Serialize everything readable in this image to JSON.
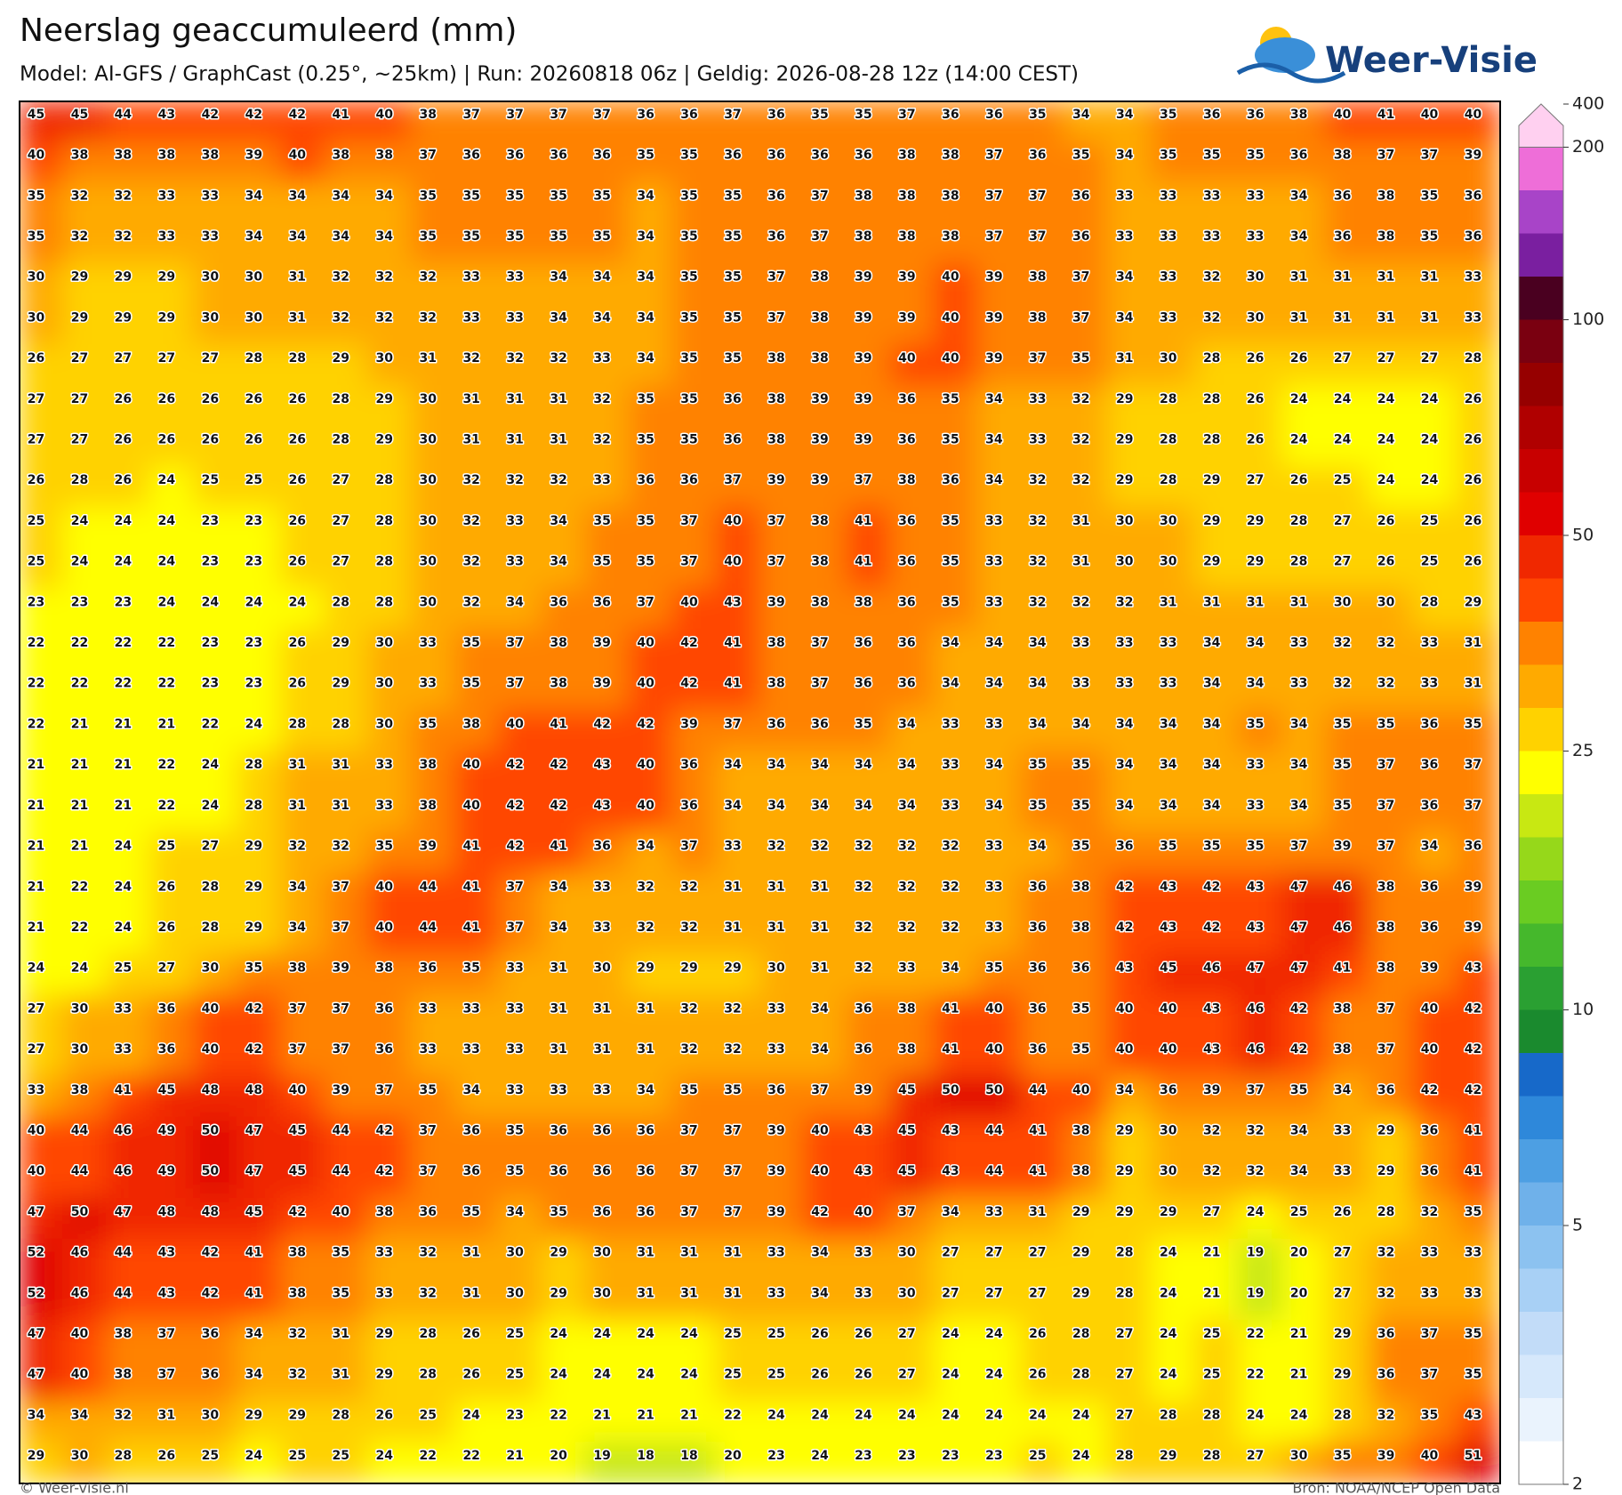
{
  "header": {
    "title": "Neerslag geaccumuleerd (mm)",
    "subtitle": "Model: AI-GFS / GraphCast (0.25°, ~25km)  |  Run: 20260818 06z  |  Geldig: 2026-08-28 12z (14:00 CEST)",
    "logo": "Weer-Visie"
  },
  "colorbar": {
    "ticks": [
      2,
      5,
      10,
      25,
      50,
      100,
      200,
      400
    ]
  },
  "grid": {
    "rows": [
      [
        45,
        45,
        44,
        43,
        42,
        42,
        42,
        41,
        40,
        38,
        37,
        37,
        37,
        37,
        36,
        36,
        37,
        36,
        35,
        35,
        37,
        36,
        36,
        35,
        34,
        34,
        35,
        36,
        36,
        38,
        40,
        41,
        40,
        40
      ],
      [
        40,
        38,
        38,
        38,
        38,
        39,
        40,
        38,
        38,
        37,
        36,
        36,
        36,
        36,
        35,
        35,
        36,
        36,
        36,
        36,
        38,
        38,
        37,
        36,
        35,
        34,
        35,
        35,
        35,
        36,
        38,
        37,
        37,
        39
      ],
      [
        35,
        32,
        32,
        33,
        33,
        34,
        34,
        34,
        34,
        35,
        35,
        35,
        35,
        35,
        34,
        35,
        35,
        36,
        37,
        38,
        38,
        38,
        37,
        37,
        36,
        33,
        33,
        33,
        33,
        34,
        36,
        38,
        35,
        36
      ],
      [
        35,
        32,
        32,
        33,
        33,
        34,
        34,
        34,
        34,
        35,
        35,
        35,
        35,
        35,
        34,
        35,
        35,
        36,
        37,
        38,
        38,
        38,
        37,
        37,
        36,
        33,
        33,
        33,
        33,
        34,
        36,
        38,
        35,
        36
      ],
      [
        30,
        29,
        29,
        29,
        30,
        30,
        31,
        32,
        32,
        32,
        33,
        33,
        34,
        34,
        34,
        35,
        35,
        37,
        38,
        39,
        39,
        40,
        39,
        38,
        37,
        34,
        33,
        32,
        30,
        31,
        31,
        31,
        31,
        33
      ],
      [
        30,
        29,
        29,
        29,
        30,
        30,
        31,
        32,
        32,
        32,
        33,
        33,
        34,
        34,
        34,
        35,
        35,
        37,
        38,
        39,
        39,
        40,
        39,
        38,
        37,
        34,
        33,
        32,
        30,
        31,
        31,
        31,
        31,
        33
      ],
      [
        26,
        27,
        27,
        27,
        27,
        28,
        28,
        29,
        30,
        31,
        32,
        32,
        32,
        33,
        34,
        35,
        35,
        38,
        38,
        39,
        40,
        40,
        39,
        37,
        35,
        31,
        30,
        28,
        26,
        26,
        27,
        27,
        27,
        28
      ],
      [
        27,
        27,
        26,
        26,
        26,
        26,
        26,
        28,
        29,
        30,
        31,
        31,
        31,
        32,
        35,
        35,
        36,
        38,
        39,
        39,
        36,
        35,
        34,
        33,
        32,
        29,
        28,
        28,
        26,
        24,
        24,
        24,
        24,
        26
      ],
      [
        27,
        27,
        26,
        26,
        26,
        26,
        26,
        28,
        29,
        30,
        31,
        31,
        31,
        32,
        35,
        35,
        36,
        38,
        39,
        39,
        36,
        35,
        34,
        33,
        32,
        29,
        28,
        28,
        26,
        24,
        24,
        24,
        24,
        26
      ],
      [
        26,
        28,
        26,
        24,
        25,
        25,
        26,
        27,
        28,
        30,
        32,
        32,
        32,
        33,
        36,
        36,
        37,
        39,
        39,
        37,
        38,
        36,
        34,
        32,
        32,
        29,
        28,
        29,
        27,
        26,
        25,
        24,
        24,
        26
      ],
      [
        25,
        24,
        24,
        24,
        23,
        23,
        26,
        27,
        28,
        30,
        32,
        33,
        34,
        35,
        35,
        37,
        40,
        37,
        38,
        41,
        36,
        35,
        33,
        32,
        31,
        30,
        30,
        29,
        29,
        28,
        27,
        26,
        25,
        26
      ],
      [
        25,
        24,
        24,
        24,
        23,
        23,
        26,
        27,
        28,
        30,
        32,
        33,
        34,
        35,
        35,
        37,
        40,
        37,
        38,
        41,
        36,
        35,
        33,
        32,
        31,
        30,
        30,
        29,
        29,
        28,
        27,
        26,
        25,
        26
      ],
      [
        23,
        23,
        23,
        24,
        24,
        24,
        24,
        28,
        28,
        30,
        32,
        34,
        36,
        36,
        37,
        40,
        43,
        39,
        38,
        38,
        36,
        35,
        33,
        32,
        32,
        32,
        31,
        31,
        31,
        31,
        30,
        30,
        28,
        29
      ],
      [
        22,
        22,
        22,
        22,
        23,
        23,
        26,
        29,
        30,
        33,
        35,
        37,
        38,
        39,
        40,
        42,
        41,
        38,
        37,
        36,
        36,
        34,
        34,
        34,
        33,
        33,
        33,
        34,
        34,
        33,
        32,
        32,
        33,
        31
      ],
      [
        22,
        22,
        22,
        22,
        23,
        23,
        26,
        29,
        30,
        33,
        35,
        37,
        38,
        39,
        40,
        42,
        41,
        38,
        37,
        36,
        36,
        34,
        34,
        34,
        33,
        33,
        33,
        34,
        34,
        33,
        32,
        32,
        33,
        31
      ],
      [
        22,
        21,
        21,
        21,
        22,
        24,
        28,
        28,
        30,
        35,
        38,
        40,
        41,
        42,
        42,
        39,
        37,
        36,
        36,
        35,
        34,
        33,
        33,
        34,
        34,
        34,
        34,
        34,
        35,
        34,
        35,
        35,
        36,
        35
      ],
      [
        21,
        21,
        21,
        22,
        24,
        28,
        31,
        31,
        33,
        38,
        40,
        42,
        42,
        43,
        40,
        36,
        34,
        34,
        34,
        34,
        34,
        33,
        34,
        35,
        35,
        34,
        34,
        34,
        33,
        34,
        35,
        37,
        36,
        37
      ],
      [
        21,
        21,
        21,
        22,
        24,
        28,
        31,
        31,
        33,
        38,
        40,
        42,
        42,
        43,
        40,
        36,
        34,
        34,
        34,
        34,
        34,
        33,
        34,
        35,
        35,
        34,
        34,
        34,
        33,
        34,
        35,
        37,
        36,
        37
      ],
      [
        21,
        21,
        24,
        25,
        27,
        29,
        32,
        32,
        35,
        39,
        41,
        42,
        41,
        36,
        34,
        37,
        33,
        32,
        32,
        32,
        32,
        32,
        33,
        34,
        35,
        36,
        35,
        35,
        35,
        37,
        39,
        37,
        34,
        36
      ],
      [
        21,
        22,
        24,
        26,
        28,
        29,
        34,
        37,
        40,
        44,
        41,
        37,
        34,
        33,
        32,
        32,
        31,
        31,
        31,
        32,
        32,
        32,
        33,
        36,
        38,
        42,
        43,
        42,
        43,
        47,
        46,
        38,
        36,
        39
      ],
      [
        21,
        22,
        24,
        26,
        28,
        29,
        34,
        37,
        40,
        44,
        41,
        37,
        34,
        33,
        32,
        32,
        31,
        31,
        31,
        32,
        32,
        32,
        33,
        36,
        38,
        42,
        43,
        42,
        43,
        47,
        46,
        38,
        36,
        39
      ],
      [
        24,
        24,
        25,
        27,
        30,
        35,
        38,
        39,
        38,
        36,
        35,
        33,
        31,
        30,
        29,
        29,
        29,
        30,
        31,
        32,
        33,
        34,
        35,
        36,
        36,
        43,
        45,
        46,
        47,
        47,
        41,
        38,
        39,
        43
      ],
      [
        27,
        30,
        33,
        36,
        40,
        42,
        37,
        37,
        36,
        33,
        33,
        33,
        31,
        31,
        31,
        32,
        32,
        33,
        34,
        36,
        38,
        41,
        40,
        36,
        35,
        40,
        40,
        43,
        46,
        42,
        38,
        37,
        40,
        42
      ],
      [
        27,
        30,
        33,
        36,
        40,
        42,
        37,
        37,
        36,
        33,
        33,
        33,
        31,
        31,
        31,
        32,
        32,
        33,
        34,
        36,
        38,
        41,
        40,
        36,
        35,
        40,
        40,
        43,
        46,
        42,
        38,
        37,
        40,
        42
      ],
      [
        33,
        38,
        41,
        45,
        48,
        48,
        40,
        39,
        37,
        35,
        34,
        33,
        33,
        33,
        34,
        35,
        35,
        36,
        37,
        39,
        45,
        50,
        50,
        44,
        40,
        34,
        36,
        39,
        37,
        35,
        34,
        36,
        42,
        42
      ],
      [
        40,
        44,
        46,
        49,
        50,
        47,
        45,
        44,
        42,
        37,
        36,
        35,
        36,
        36,
        36,
        37,
        37,
        39,
        40,
        43,
        45,
        43,
        44,
        41,
        38,
        29,
        30,
        32,
        32,
        34,
        33,
        29,
        36,
        41
      ],
      [
        40,
        44,
        46,
        49,
        50,
        47,
        45,
        44,
        42,
        37,
        36,
        35,
        36,
        36,
        36,
        37,
        37,
        39,
        40,
        43,
        45,
        43,
        44,
        41,
        38,
        29,
        30,
        32,
        32,
        34,
        33,
        29,
        36,
        41
      ],
      [
        47,
        50,
        47,
        48,
        48,
        45,
        42,
        40,
        38,
        36,
        35,
        34,
        35,
        36,
        36,
        37,
        37,
        39,
        42,
        40,
        37,
        34,
        33,
        31,
        29,
        29,
        29,
        27,
        24,
        25,
        26,
        28,
        32,
        35
      ],
      [
        52,
        46,
        44,
        43,
        42,
        41,
        38,
        35,
        33,
        32,
        31,
        30,
        29,
        30,
        31,
        31,
        31,
        33,
        34,
        33,
        30,
        27,
        27,
        27,
        29,
        28,
        24,
        21,
        19,
        20,
        27,
        32,
        33,
        33
      ],
      [
        52,
        46,
        44,
        43,
        42,
        41,
        38,
        35,
        33,
        32,
        31,
        30,
        29,
        30,
        31,
        31,
        31,
        33,
        34,
        33,
        30,
        27,
        27,
        27,
        29,
        28,
        24,
        21,
        19,
        20,
        27,
        32,
        33,
        33
      ],
      [
        47,
        40,
        38,
        37,
        36,
        34,
        32,
        31,
        29,
        28,
        26,
        25,
        24,
        24,
        24,
        24,
        25,
        25,
        26,
        26,
        27,
        24,
        24,
        26,
        28,
        27,
        24,
        25,
        22,
        21,
        29,
        36,
        37,
        35
      ],
      [
        47,
        40,
        38,
        37,
        36,
        34,
        32,
        31,
        29,
        28,
        26,
        25,
        24,
        24,
        24,
        24,
        25,
        25,
        26,
        26,
        27,
        24,
        24,
        26,
        28,
        27,
        24,
        25,
        22,
        21,
        29,
        36,
        37,
        35
      ],
      [
        34,
        34,
        32,
        31,
        30,
        29,
        29,
        28,
        26,
        25,
        24,
        23,
        22,
        21,
        21,
        21,
        22,
        24,
        24,
        24,
        24,
        24,
        24,
        24,
        24,
        27,
        28,
        28,
        24,
        24,
        28,
        32,
        35,
        43
      ],
      [
        29,
        30,
        28,
        26,
        25,
        24,
        25,
        25,
        24,
        22,
        22,
        21,
        20,
        19,
        18,
        18,
        20,
        23,
        24,
        23,
        23,
        23,
        23,
        25,
        24,
        28,
        29,
        28,
        27,
        30,
        35,
        39,
        40,
        51
      ]
    ]
  },
  "footer": {
    "left": "© Weer-visie.nl",
    "right": "Bron: NOAA/NCEP Open Data"
  }
}
